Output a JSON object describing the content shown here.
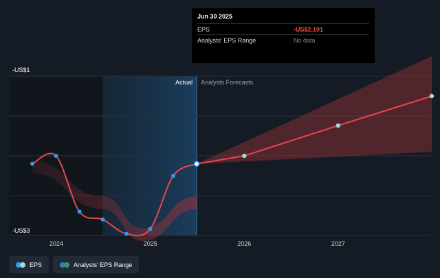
{
  "chart_data": {
    "type": "line",
    "y_tick_labels": [
      "-US$1",
      "-US$3"
    ],
    "x_tick_labels": [
      "2024",
      "2025",
      "2026",
      "2027"
    ],
    "region_labels": {
      "actual": "Actual",
      "forecast": "Analysts Forecasts"
    },
    "ylim": [
      -3,
      -1
    ],
    "series": [
      {
        "name": "EPS",
        "points": [
          {
            "x": "2023-09-30",
            "y": -2.1
          },
          {
            "x": "2023-12-31",
            "y": -2.0
          },
          {
            "x": "2024-03-31",
            "y": -2.7
          },
          {
            "x": "2024-06-30",
            "y": -2.8
          },
          {
            "x": "2024-09-30",
            "y": -2.98
          },
          {
            "x": "2024-12-31",
            "y": -2.92
          },
          {
            "x": "2025-03-31",
            "y": -2.25
          },
          {
            "x": "2025-06-30",
            "y": -2.101
          }
        ]
      },
      {
        "name": "EPS forecast",
        "points": [
          {
            "x": "2025-06-30",
            "y": -2.101
          },
          {
            "x": "2026-01-01",
            "y": -2.0
          },
          {
            "x": "2027-01-01",
            "y": -1.62
          },
          {
            "x": "2027-12-31",
            "y": -1.25
          }
        ]
      }
    ],
    "forecast_range": {
      "x": [
        "2025-06-30",
        "2027-12-31"
      ],
      "upper": [
        -2.101,
        -0.75
      ],
      "lower": [
        -2.101,
        -1.95
      ]
    },
    "colors": {
      "eps_line": "#e8474c",
      "eps_point": "#2f9bf0",
      "forecast_point": "#8fe3d8",
      "band": "#9c3238",
      "actual_highlight": "#1b3a55"
    }
  },
  "tooltip": {
    "title": "Jun 30 2025",
    "rows": [
      {
        "label": "EPS",
        "value": "-US$2.101"
      },
      {
        "label": "Analysts' EPS Range",
        "value": "No data"
      }
    ]
  },
  "legend": {
    "items": [
      {
        "label": "EPS"
      },
      {
        "label": "Analysts' EPS Range"
      }
    ]
  }
}
